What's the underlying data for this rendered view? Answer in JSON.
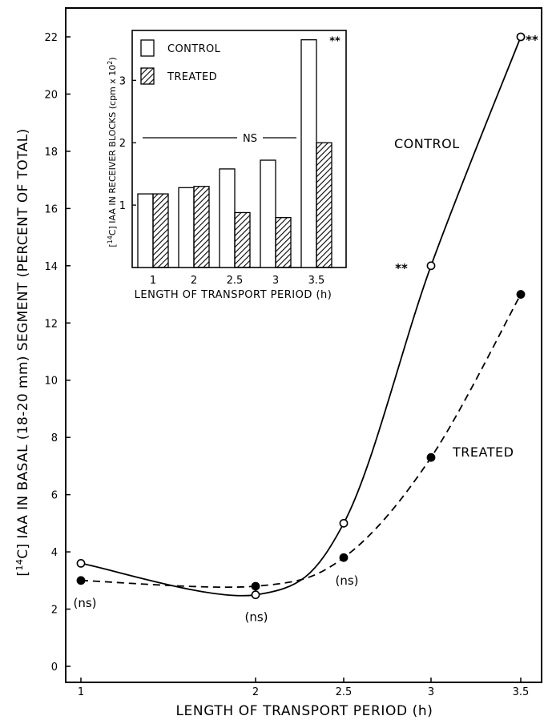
{
  "chart_data": [
    {
      "type": "line",
      "xlabel": "LENGTH OF TRANSPORT PERIOD (h)",
      "ylabel": "[14C] IAA IN BASAL (18-20 mm) SEGMENT (PERCENT OF TOTAL)",
      "ylabel_parts": {
        "pre": "[",
        "sup": "14",
        "post": "C] IAA  IN  BASAL  (18-20 mm)  SEGMENT  (PERCENT  OF  TOTAL)"
      },
      "x_ticks": [
        1,
        2,
        2.5,
        3,
        3.5
      ],
      "ylim": [
        0,
        22
      ],
      "y_ticks": [
        0,
        2,
        4,
        6,
        8,
        10,
        12,
        14,
        16,
        18,
        20,
        22
      ],
      "grid": false,
      "x": [
        1,
        2,
        2.5,
        3,
        3.5
      ],
      "series": [
        {
          "name": "CONTROL",
          "values": [
            3.6,
            2.5,
            5.0,
            14.0,
            22.0
          ],
          "marker": "open-circle",
          "line": "solid"
        },
        {
          "name": "TREATED",
          "values": [
            3.0,
            2.8,
            3.8,
            7.3,
            13.0
          ],
          "marker": "filled-circle",
          "line": "dashed"
        }
      ],
      "annotations": [
        {
          "text": "(ns)",
          "x": 1
        },
        {
          "text": "(ns)",
          "x": 2
        },
        {
          "text": "(ns)",
          "x": 2.5
        },
        {
          "text": "**",
          "x": 3
        },
        {
          "text": "**",
          "x": 3.5
        }
      ]
    },
    {
      "type": "bar",
      "xlabel": "LENGTH OF TRANSPORT PERIOD (h)",
      "ylabel": "[14C] IAA IN RECEIVER BLOCKS (cpm x 10^2)",
      "ylabel_parts": {
        "pre": "[",
        "sup": "14",
        "post": "C] IAA IN RECEIVER BLOCKS (cpm x 10",
        "sup2": "2",
        "end": ")"
      },
      "categories": [
        "1",
        "2",
        "2.5",
        "3",
        "3.5"
      ],
      "ylim": [
        0,
        3.8
      ],
      "y_ticks": [
        1,
        2,
        3
      ],
      "legend_position": "top-left",
      "series": [
        {
          "name": "CONTROL",
          "values": [
            1.18,
            1.28,
            1.58,
            1.72,
            3.65
          ],
          "pattern": "open"
        },
        {
          "name": "TREATED",
          "values": [
            1.18,
            1.3,
            0.88,
            0.8,
            2.0
          ],
          "pattern": "hatched"
        }
      ],
      "annotations": [
        {
          "text": "NS",
          "spans": [
            "1",
            "3"
          ]
        },
        {
          "text": "**",
          "category": "3.5"
        }
      ]
    }
  ]
}
